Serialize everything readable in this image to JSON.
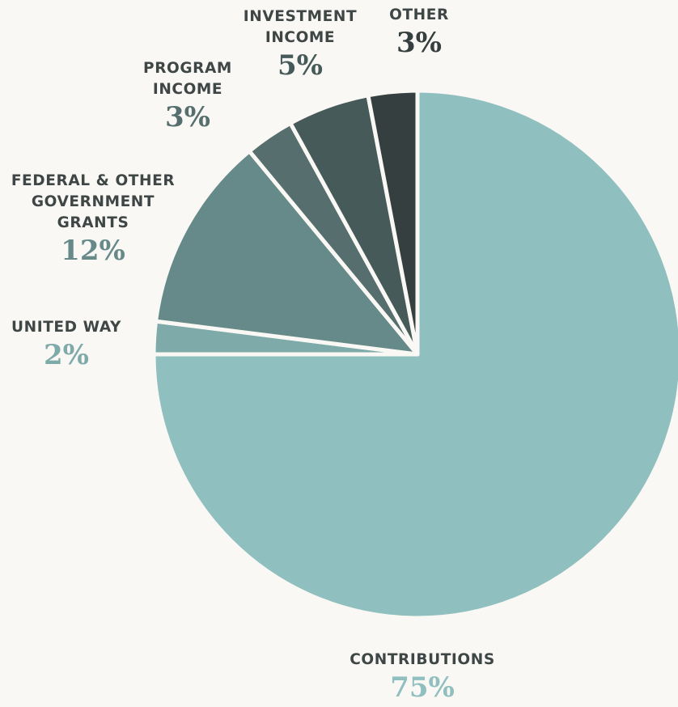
{
  "chart_data": {
    "type": "pie",
    "title": "",
    "slices": [
      {
        "label": "CONTRIBUTIONS",
        "percent_label": "75%",
        "value": 75,
        "color": "#8fbfbf",
        "label_color": "#8fbfbf"
      },
      {
        "label": "UNITED WAY",
        "percent_label": "2%",
        "value": 2,
        "color": "#7eaaaa",
        "label_color": "#7eaaaa"
      },
      {
        "label": "FEDERAL & OTHER\nGOVERNMENT\nGRANTS",
        "percent_label": "12%",
        "value": 12,
        "color": "#668a89",
        "label_color": "#668a89"
      },
      {
        "label": "PROGRAM\nINCOME",
        "percent_label": "3%",
        "value": 3,
        "color": "#566f6e",
        "label_color": "#566f6e"
      },
      {
        "label": "INVESTMENT\nINCOME",
        "percent_label": "5%",
        "value": 5,
        "color": "#465a5a",
        "label_color": "#465a5a"
      },
      {
        "label": "OTHER",
        "percent_label": "3%",
        "value": 3,
        "color": "#363f3f",
        "label_color": "#363f3f"
      }
    ]
  }
}
